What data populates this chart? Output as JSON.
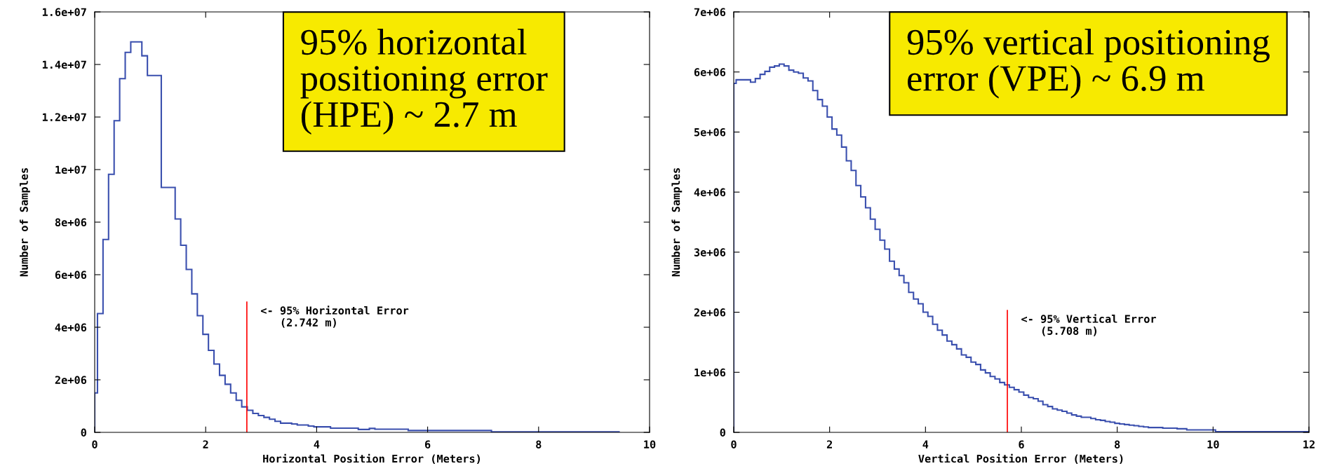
{
  "chart_data": [
    {
      "type": "histogram",
      "xlabel": "Horizontal Position Error (Meters)",
      "ylabel": "Number of Samples",
      "color": "#3a4fae",
      "bins": [
        0,
        0.05,
        0.15,
        0.25,
        0.35,
        0.45,
        0.55,
        0.65,
        0.85,
        0.95,
        1.2,
        1.45,
        1.55,
        1.65,
        1.75,
        1.85,
        1.95,
        2.05,
        2.15,
        2.25,
        2.35,
        2.45,
        2.55,
        2.65,
        2.75,
        2.85,
        2.95,
        3.05,
        3.15,
        3.25,
        3.35,
        3.55,
        3.65,
        3.85,
        3.95,
        4.25,
        4.75,
        4.95,
        5.05,
        5.65,
        7.15,
        9.45
      ],
      "values": [
        1500000,
        4520000,
        7340000,
        9820000,
        11860000,
        13460000,
        14460000,
        14860000,
        14330000,
        13580000,
        9320000,
        8120000,
        7120000,
        6200000,
        5270000,
        4440000,
        3730000,
        3120000,
        2600000,
        2170000,
        1830000,
        1500000,
        1220000,
        970000,
        840000,
        720000,
        640000,
        570000,
        500000,
        420000,
        350000,
        320000,
        280000,
        240000,
        210000,
        160000,
        110000,
        150000,
        120000,
        70000,
        20000
      ],
      "xlim": [
        0,
        10
      ],
      "xticks": [
        0,
        2,
        4,
        6,
        8,
        10
      ],
      "ylim": [
        0,
        16000000
      ],
      "yticks": [
        0,
        {
          "value": 2000000,
          "label": "2e+06"
        },
        {
          "value": 4000000,
          "label": "4e+06"
        },
        {
          "value": 6000000,
          "label": "6e+06"
        },
        {
          "value": 8000000,
          "label": "8e+06"
        },
        {
          "value": 10000000,
          "label": "1e+07"
        },
        {
          "value": 12000000,
          "label": "1.2e+07"
        },
        {
          "value": 14000000,
          "label": "1.4e+07"
        },
        {
          "value": 16000000,
          "label": "1.6e+07"
        }
      ],
      "ref_lines": [
        {
          "axis": "x",
          "value": 2.742,
          "label": "<- 95% Horizontal Error\n   (2.742 m)",
          "color": "#ff0000"
        }
      ],
      "annotations": [
        "95% horizontal\npositioning error\n(HPE) ~ 2.7 m"
      ],
      "grid": false
    },
    {
      "type": "histogram",
      "xlabel": "Vertical Position Error (Meters)",
      "ylabel": "Number of Samples",
      "color": "#3a4fae",
      "bins": [
        0,
        0.05,
        0.35,
        0.45,
        0.55,
        0.65,
        0.75,
        0.85,
        0.95,
        1.05,
        1.15,
        1.25,
        1.35,
        1.45,
        1.55,
        1.65,
        1.75,
        1.85,
        1.95,
        2.05,
        2.15,
        2.25,
        2.35,
        2.45,
        2.55,
        2.65,
        2.75,
        2.85,
        2.95,
        3.05,
        3.15,
        3.25,
        3.35,
        3.45,
        3.55,
        3.65,
        3.75,
        3.85,
        3.95,
        4.05,
        4.15,
        4.25,
        4.35,
        4.45,
        4.55,
        4.65,
        4.75,
        4.85,
        4.95,
        5.05,
        5.15,
        5.25,
        5.35,
        5.45,
        5.55,
        5.65,
        5.75,
        5.85,
        5.95,
        6.05,
        6.15,
        6.25,
        6.35,
        6.45,
        6.55,
        6.65,
        6.75,
        6.85,
        6.95,
        7.05,
        7.15,
        7.25,
        7.35,
        7.45,
        7.55,
        7.65,
        7.75,
        7.85,
        7.95,
        8.05,
        8.15,
        8.25,
        8.35,
        8.45,
        8.55,
        8.65,
        8.95,
        9.05,
        9.25,
        9.45,
        10.05,
        12
      ],
      "values": [
        5810000,
        5870000,
        5830000,
        5890000,
        5960000,
        6010000,
        6080000,
        6100000,
        6130000,
        6100000,
        6030000,
        6000000,
        5980000,
        5900000,
        5850000,
        5690000,
        5540000,
        5430000,
        5250000,
        5050000,
        4950000,
        4750000,
        4520000,
        4360000,
        4110000,
        3920000,
        3740000,
        3550000,
        3380000,
        3200000,
        3050000,
        2850000,
        2720000,
        2610000,
        2490000,
        2330000,
        2220000,
        2140000,
        2000000,
        1930000,
        1800000,
        1700000,
        1620000,
        1520000,
        1460000,
        1390000,
        1290000,
        1250000,
        1170000,
        1130000,
        1040000,
        990000,
        930000,
        890000,
        830000,
        790000,
        750000,
        710000,
        670000,
        620000,
        580000,
        560000,
        520000,
        460000,
        430000,
        390000,
        370000,
        350000,
        320000,
        290000,
        270000,
        250000,
        250000,
        230000,
        210000,
        200000,
        180000,
        170000,
        150000,
        140000,
        130000,
        120000,
        110000,
        100000,
        90000,
        80000,
        70000,
        70000,
        60000,
        40000,
        10000
      ],
      "xlim": [
        0,
        12
      ],
      "xticks": [
        0,
        2,
        4,
        6,
        8,
        10,
        12
      ],
      "ylim": [
        0,
        7000000
      ],
      "yticks": [
        0,
        {
          "value": 1000000,
          "label": "1e+06"
        },
        {
          "value": 2000000,
          "label": "2e+06"
        },
        {
          "value": 3000000,
          "label": "3e+06"
        },
        {
          "value": 4000000,
          "label": "4e+06"
        },
        {
          "value": 5000000,
          "label": "5e+06"
        },
        {
          "value": 6000000,
          "label": "6e+06"
        },
        {
          "value": 7000000,
          "label": "7e+06"
        }
      ],
      "ref_lines": [
        {
          "axis": "x",
          "value": 5.708,
          "label": "<- 95% Vertical Error\n   (5.708 m)",
          "color": "#ff0000"
        }
      ],
      "annotations": [
        "95% vertical positioning\nerror (VPE) ~ 6.9 m"
      ],
      "grid": false
    }
  ]
}
